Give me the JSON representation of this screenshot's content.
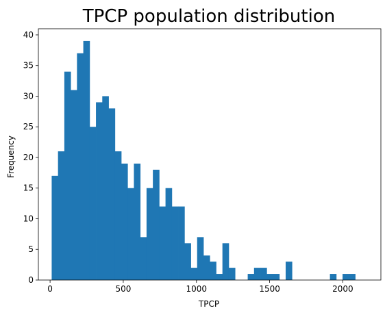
{
  "chart_data": {
    "type": "bar",
    "title": "TPCP population distribution",
    "xlabel": "TPCP",
    "ylabel": "Frequency",
    "xlim": [
      -80,
      2260
    ],
    "ylim": [
      0,
      41
    ],
    "xticks": [
      0,
      500,
      1000,
      1500,
      2000
    ],
    "yticks": [
      0,
      5,
      10,
      15,
      20,
      25,
      30,
      35,
      40
    ],
    "grid": false,
    "bar_color": "#1f77b4",
    "bin_start": 11,
    "bin_width": 43.2,
    "values": [
      17,
      21,
      34,
      31,
      37,
      39,
      25,
      29,
      30,
      28,
      21,
      19,
      15,
      19,
      7,
      15,
      18,
      12,
      15,
      12,
      12,
      6,
      2,
      7,
      4,
      3,
      1,
      6,
      2,
      0,
      0,
      1,
      2,
      2,
      1,
      1,
      0,
      3,
      0,
      0,
      0,
      0,
      0,
      0,
      1,
      0,
      1,
      1
    ]
  }
}
